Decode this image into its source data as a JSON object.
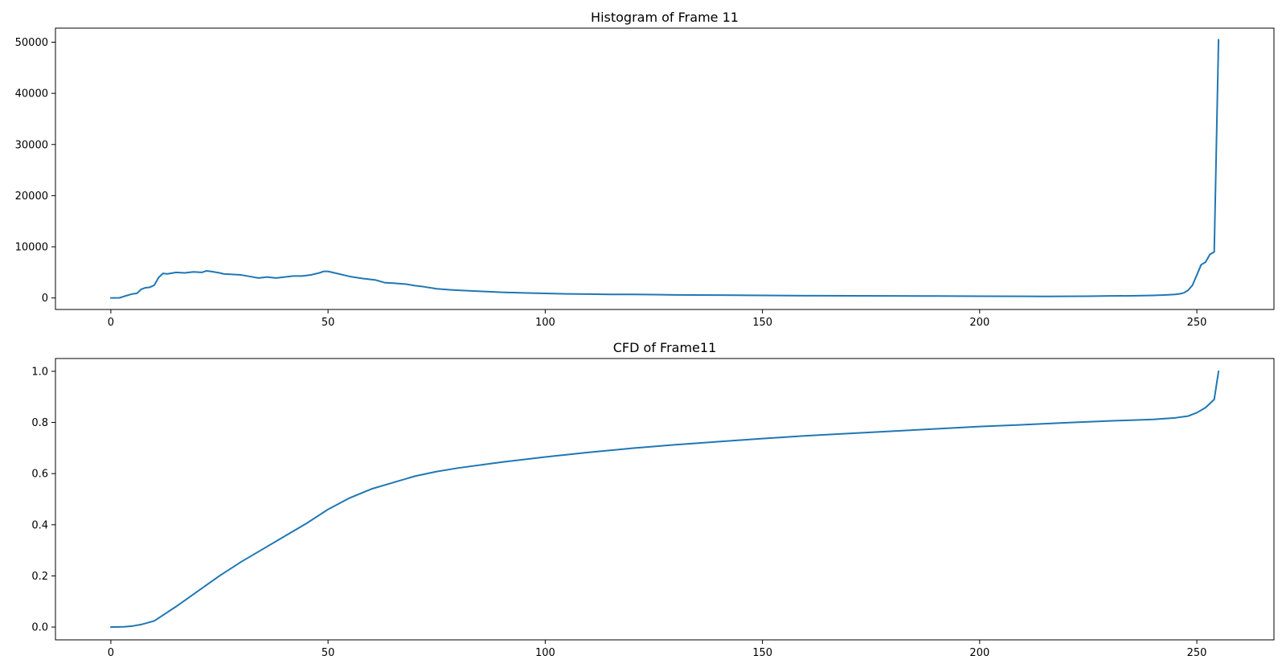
{
  "chart_data": [
    {
      "type": "line",
      "title": "Histogram of Frame 11",
      "xlabel": "",
      "ylabel": "",
      "xlim": [
        -12.75,
        267.75
      ],
      "ylim": [
        -2250,
        52750
      ],
      "xticks": [
        0,
        50,
        100,
        150,
        200,
        250
      ],
      "yticks": [
        0,
        10000,
        20000,
        30000,
        40000,
        50000
      ],
      "grid": false,
      "color": "#1f77b4",
      "series": [
        {
          "x": [
            0,
            2,
            3,
            5,
            6,
            7,
            8,
            9,
            10,
            11,
            12,
            13,
            15,
            17,
            19,
            21,
            22,
            23,
            25,
            26,
            28,
            30,
            32,
            34,
            36,
            38,
            40,
            42,
            44,
            46,
            48,
            49,
            50,
            52,
            55,
            58,
            61,
            63,
            65,
            68,
            70,
            72,
            75,
            78,
            80,
            85,
            90,
            95,
            100,
            105,
            110,
            115,
            120,
            125,
            130,
            140,
            150,
            160,
            170,
            180,
            190,
            200,
            210,
            215,
            220,
            225,
            230,
            235,
            240,
            243,
            245,
            246,
            247,
            248,
            249,
            250,
            251,
            252,
            253,
            254,
            255
          ],
          "y": [
            0,
            30,
            300,
            800,
            900,
            1700,
            2000,
            2100,
            2500,
            4000,
            4800,
            4700,
            5000,
            4900,
            5100,
            5000,
            5300,
            5200,
            4900,
            4700,
            4600,
            4500,
            4200,
            3900,
            4100,
            3900,
            4100,
            4300,
            4300,
            4500,
            4900,
            5200,
            5200,
            4800,
            4200,
            3800,
            3500,
            3000,
            2900,
            2700,
            2400,
            2200,
            1800,
            1600,
            1500,
            1300,
            1100,
            1000,
            900,
            800,
            750,
            700,
            700,
            650,
            600,
            550,
            500,
            450,
            420,
            400,
            380,
            350,
            320,
            300,
            330,
            350,
            400,
            420,
            500,
            600,
            700,
            800,
            1000,
            1500,
            2500,
            4500,
            6500,
            7000,
            8500,
            9000,
            50500
          ]
        }
      ]
    },
    {
      "type": "line",
      "title": "CFD of Frame11",
      "xlabel": "",
      "ylabel": "",
      "xlim": [
        -12.75,
        267.75
      ],
      "ylim": [
        -0.05,
        1.05
      ],
      "xticks": [
        0,
        50,
        100,
        150,
        200,
        250
      ],
      "yticks": [
        0.0,
        0.2,
        0.4,
        0.6,
        0.8,
        1.0
      ],
      "ytick_format": "1",
      "grid": false,
      "color": "#1f77b4",
      "series": [
        {
          "x": [
            0,
            3,
            5,
            7,
            10,
            15,
            20,
            25,
            30,
            35,
            40,
            45,
            50,
            55,
            60,
            65,
            70,
            75,
            80,
            90,
            100,
            110,
            120,
            130,
            140,
            150,
            160,
            170,
            180,
            190,
            200,
            210,
            220,
            230,
            240,
            245,
            248,
            250,
            252,
            254,
            255
          ],
          "y": [
            0.0,
            0.001,
            0.004,
            0.01,
            0.024,
            0.08,
            0.14,
            0.2,
            0.255,
            0.305,
            0.355,
            0.405,
            0.46,
            0.505,
            0.54,
            0.565,
            0.59,
            0.608,
            0.622,
            0.645,
            0.665,
            0.683,
            0.699,
            0.713,
            0.725,
            0.737,
            0.748,
            0.757,
            0.766,
            0.775,
            0.784,
            0.791,
            0.799,
            0.806,
            0.812,
            0.818,
            0.825,
            0.838,
            0.858,
            0.89,
            1.0
          ]
        }
      ]
    }
  ]
}
